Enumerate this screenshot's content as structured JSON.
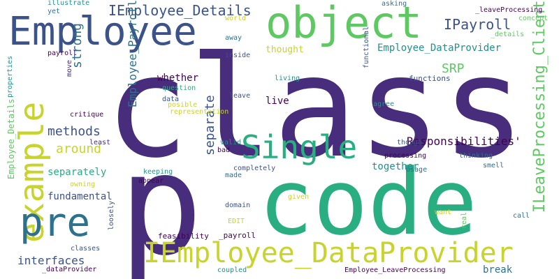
{
  "background": "#ffffff",
  "palette": {
    "dark_purple": "#440154",
    "purple": "#472d7b",
    "indigo": "#3b528b",
    "blue": "#2c728e",
    "teal": "#21918c",
    "green_teal": "#28ae80",
    "green": "#5ec962",
    "yellow_green": "#addc30",
    "yellow": "#c8d42c"
  },
  "words": [
    {
      "text": "class",
      "color": "#472d7b",
      "size": 200,
      "rotate": 0
    },
    {
      "text": "p",
      "color": "#472d7b",
      "size": 200,
      "rotate": 0
    },
    {
      "text": "code",
      "color": "#28ae80",
      "size": 130,
      "rotate": 0
    },
    {
      "text": "Employee",
      "color": "#3b528b",
      "size": 56,
      "rotate": 0
    },
    {
      "text": "object",
      "color": "#5ec962",
      "size": 62,
      "rotate": 0
    },
    {
      "text": "example",
      "color": "#c8d42c",
      "size": 48,
      "rotate": -90
    },
    {
      "text": "pre",
      "color": "#2c728e",
      "size": 56,
      "rotate": 0
    },
    {
      "text": "Single",
      "color": "#28ae80",
      "size": 46,
      "rotate": 0
    },
    {
      "text": "IEmployee_DataProvider",
      "color": "#c8d42c",
      "size": 40,
      "rotate": 0
    },
    {
      "text": "IEmployee_Details",
      "color": "#3b528b",
      "size": 20,
      "rotate": 0
    },
    {
      "text": "IPayroll",
      "color": "#3b528b",
      "size": 20,
      "rotate": 0
    },
    {
      "text": "ILeaveProcessing_Client",
      "color": "#5ec962",
      "size": 22,
      "rotate": -90
    },
    {
      "text": "Employee_DataProvider",
      "color": "#21918c",
      "size": 14,
      "rotate": 0
    },
    {
      "text": "strong",
      "color": "#2c728e",
      "size": 18,
      "rotate": -90
    },
    {
      "text": "Employee_Payroll",
      "color": "#2c728e",
      "size": 16,
      "rotate": -90
    },
    {
      "text": "SRP",
      "color": "#5ec962",
      "size": 18,
      "rotate": 0
    },
    {
      "text": "methods",
      "color": "#3b528b",
      "size": 18,
      "rotate": 0
    },
    {
      "text": "around",
      "color": "#c8d42c",
      "size": 18,
      "rotate": 0
    },
    {
      "text": "separate",
      "color": "#3b528b",
      "size": 18,
      "rotate": -90
    },
    {
      "text": "Responsibilities'",
      "color": "#440154",
      "size": 16,
      "rotate": 0
    },
    {
      "text": "together",
      "color": "#21918c",
      "size": 14,
      "rotate": 0
    },
    {
      "text": "separately",
      "color": "#28ae80",
      "size": 14,
      "rotate": 0
    },
    {
      "text": "fundamental",
      "color": "#3b528b",
      "size": 14,
      "rotate": 0
    },
    {
      "text": "interfaces",
      "color": "#3b528b",
      "size": 16,
      "rotate": 0
    },
    {
      "text": "whether",
      "color": "#440154",
      "size": 14,
      "rotate": 0
    },
    {
      "text": "live",
      "color": "#440154",
      "size": 14,
      "rotate": 0
    },
    {
      "text": "break",
      "color": "#2c728e",
      "size": 14,
      "rotate": 0
    },
    {
      "text": "Employee_Details",
      "color": "#5ec962",
      "size": 12,
      "rotate": -90
    },
    {
      "text": "properties",
      "color": "#21918c",
      "size": 10,
      "rotate": -90
    },
    {
      "text": "illustrate",
      "color": "#21918c",
      "size": 10,
      "rotate": 0
    },
    {
      "text": "yet",
      "color": "#2c728e",
      "size": 10,
      "rotate": 0
    },
    {
      "text": "payroll",
      "color": "#440154",
      "size": 10,
      "rotate": 0
    },
    {
      "text": "move",
      "color": "#472d7b",
      "size": 10,
      "rotate": -90
    },
    {
      "text": "world",
      "color": "#c8d42c",
      "size": 10,
      "rotate": 0
    },
    {
      "text": "away",
      "color": "#2c728e",
      "size": 10,
      "rotate": 0
    },
    {
      "text": "inside",
      "color": "#3b528b",
      "size": 10,
      "rotate": 0
    },
    {
      "text": "thought",
      "color": "#c8d42c",
      "size": 13,
      "rotate": 0
    },
    {
      "text": "asking",
      "color": "#2c728e",
      "size": 10,
      "rotate": 0
    },
    {
      "text": "_leaveProcessing",
      "color": "#440154",
      "size": 10,
      "rotate": 0
    },
    {
      "text": "concept",
      "color": "#5ec962",
      "size": 10,
      "rotate": 0
    },
    {
      "text": "_details",
      "color": "#5ec962",
      "size": 10,
      "rotate": 0
    },
    {
      "text": "functional",
      "color": "#3b528b",
      "size": 10,
      "rotate": -90
    },
    {
      "text": "living",
      "color": "#21918c",
      "size": 10,
      "rotate": 0
    },
    {
      "text": "functions",
      "color": "#3b528b",
      "size": 11,
      "rotate": 0
    },
    {
      "text": "agree",
      "color": "#21918c",
      "size": 10,
      "rotate": 0
    },
    {
      "text": "question",
      "color": "#28ae80",
      "size": 10,
      "rotate": 0
    },
    {
      "text": "data",
      "color": "#3b528b",
      "size": 10,
      "rotate": 0
    },
    {
      "text": "posible",
      "color": "#c8d42c",
      "size": 10,
      "rotate": 0
    },
    {
      "text": "leave",
      "color": "#3b528b",
      "size": 10,
      "rotate": 0
    },
    {
      "text": "representation",
      "color": "#c8d42c",
      "size": 10,
      "rotate": 0
    },
    {
      "text": "critique",
      "color": "#440154",
      "size": 10,
      "rotate": 0
    },
    {
      "text": "least",
      "color": "#472d7b",
      "size": 10,
      "rotate": 0
    },
    {
      "text": "valid",
      "color": "#21918c",
      "size": 10,
      "rotate": 0
    },
    {
      "text": "bad",
      "color": "#440154",
      "size": 10,
      "rotate": 0
    },
    {
      "text": "though",
      "color": "#3b528b",
      "size": 10,
      "rotate": 0
    },
    {
      "text": "processing",
      "color": "#440154",
      "size": 10,
      "rotate": 0
    },
    {
      "text": "thinking",
      "color": "#2c728e",
      "size": 10,
      "rotate": 0
    },
    {
      "text": "smell",
      "color": "#2c728e",
      "size": 10,
      "rotate": 0
    },
    {
      "text": "keeping",
      "color": "#21918c",
      "size": 10,
      "rotate": 0
    },
    {
      "text": "appear",
      "color": "#440154",
      "size": 10,
      "rotate": 0
    },
    {
      "text": "owning",
      "color": "#c8d42c",
      "size": 10,
      "rotate": 0
    },
    {
      "text": "completely",
      "color": "#3b528b",
      "size": 10,
      "rotate": 0
    },
    {
      "text": "made",
      "color": "#2c728e",
      "size": 10,
      "rotate": 0
    },
    {
      "text": "usage",
      "color": "#2c728e",
      "size": 10,
      "rotate": 0
    },
    {
      "text": "domain",
      "color": "#3b528b",
      "size": 10,
      "rotate": 0
    },
    {
      "text": "given",
      "color": "#c8d42c",
      "size": 10,
      "rotate": 0
    },
    {
      "text": "want",
      "color": "#c8d42c",
      "size": 10,
      "rotate": 0
    },
    {
      "text": "real",
      "color": "#5ec962",
      "size": 10,
      "rotate": -90
    },
    {
      "text": "EDIT",
      "color": "#c8d42c",
      "size": 10,
      "rotate": 0
    },
    {
      "text": "call",
      "color": "#2c728e",
      "size": 10,
      "rotate": 0
    },
    {
      "text": "loosely",
      "color": "#3b528b",
      "size": 10,
      "rotate": -90
    },
    {
      "text": "feasibility",
      "color": "#440154",
      "size": 11,
      "rotate": 0
    },
    {
      "text": "_payroll",
      "color": "#440154",
      "size": 11,
      "rotate": 0
    },
    {
      "text": "classes",
      "color": "#3b528b",
      "size": 10,
      "rotate": 0
    },
    {
      "text": "_dataProvider",
      "color": "#440154",
      "size": 10,
      "rotate": 0
    },
    {
      "text": "coupled",
      "color": "#21918c",
      "size": 10,
      "rotate": 0
    },
    {
      "text": "Employee_LeaveProcessing",
      "color": "#440154",
      "size": 10,
      "rotate": 0
    }
  ]
}
